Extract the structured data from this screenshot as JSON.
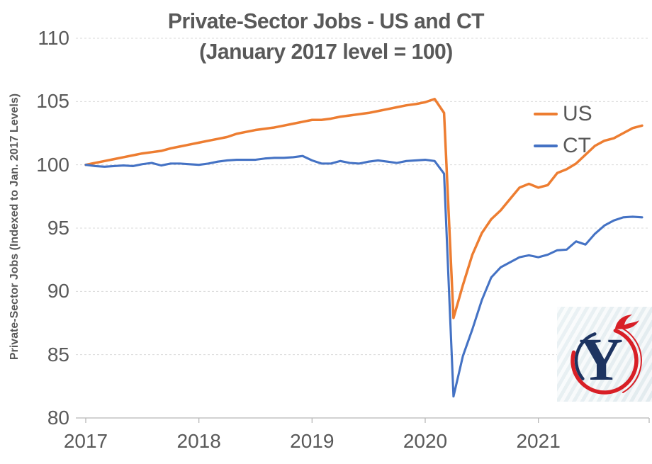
{
  "title": {
    "line1": "Private-Sector Jobs - US and CT",
    "line2": "(January 2017 level = 100)"
  },
  "y_axis": {
    "title": "Private-Sector Jobs (Indexed to Jan. 2017 Levels)",
    "ticks": [
      80,
      85,
      90,
      95,
      100,
      105,
      110
    ],
    "min": 80,
    "max": 110
  },
  "x_axis": {
    "tick_labels": [
      "2017",
      "2018",
      "2019",
      "2020",
      "2021"
    ]
  },
  "legend": [
    {
      "label": "US",
      "color": "#ED7D31"
    },
    {
      "label": "CT",
      "color": "#4472C4"
    }
  ],
  "colors": {
    "us_line": "#ED7D31",
    "ct_line": "#4472C4",
    "text_gray": "#595959",
    "gridline": "#d9d9d9",
    "axis_line": "#b8b8b8",
    "logo_navy": "#1d3461",
    "logo_red": "#d81f26"
  },
  "logo": {
    "letter": "Y"
  },
  "chart_data": {
    "type": "line",
    "title": "Private-Sector Jobs - US and CT (January 2017 level = 100)",
    "x_start": "2017-01",
    "x_end": "2021-12",
    "frequency": "monthly",
    "ylim": [
      80,
      110
    ],
    "grid": true,
    "legend_position": "top-right",
    "series": [
      {
        "name": "US",
        "color": "#ED7D31",
        "values": [
          100.0,
          100.15,
          100.3,
          100.45,
          100.6,
          100.75,
          100.9,
          101.0,
          101.1,
          101.3,
          101.45,
          101.6,
          101.75,
          101.9,
          102.05,
          102.2,
          102.45,
          102.6,
          102.75,
          102.85,
          102.95,
          103.1,
          103.25,
          103.4,
          103.55,
          103.55,
          103.65,
          103.8,
          103.9,
          104.0,
          104.1,
          104.25,
          104.4,
          104.55,
          104.7,
          104.8,
          104.95,
          105.2,
          104.1,
          87.9,
          90.5,
          92.9,
          94.6,
          95.7,
          96.4,
          97.3,
          98.2,
          98.5,
          98.2,
          98.4,
          99.35,
          99.65,
          100.1,
          100.8,
          101.5,
          101.9,
          102.1,
          102.5,
          102.9,
          103.1
        ]
      },
      {
        "name": "CT",
        "color": "#4472C4",
        "values": [
          100.0,
          99.9,
          99.85,
          99.9,
          99.95,
          99.9,
          100.05,
          100.15,
          99.95,
          100.1,
          100.1,
          100.05,
          100.0,
          100.1,
          100.25,
          100.35,
          100.4,
          100.4,
          100.4,
          100.5,
          100.55,
          100.55,
          100.6,
          100.7,
          100.35,
          100.1,
          100.1,
          100.3,
          100.15,
          100.1,
          100.25,
          100.35,
          100.25,
          100.15,
          100.3,
          100.35,
          100.4,
          100.3,
          99.3,
          81.7,
          84.9,
          87.0,
          89.3,
          91.1,
          91.9,
          92.3,
          92.7,
          92.85,
          92.7,
          92.9,
          93.25,
          93.3,
          93.95,
          93.7,
          94.55,
          95.2,
          95.6,
          95.85,
          95.9,
          95.85
        ]
      }
    ]
  }
}
